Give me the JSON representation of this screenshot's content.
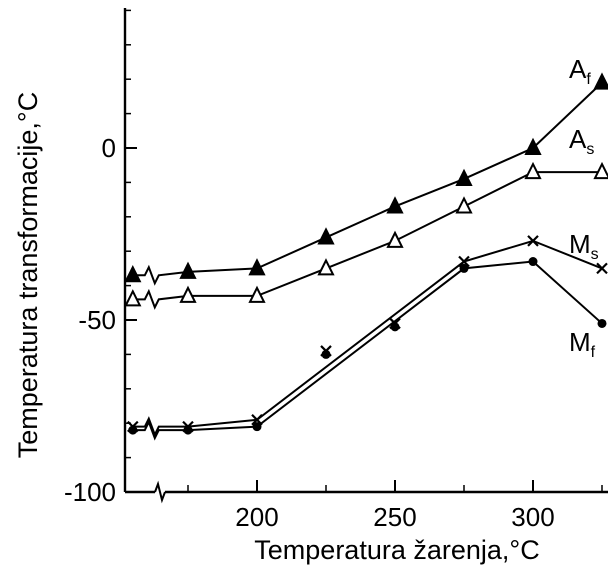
{
  "chart_data": {
    "type": "line",
    "title": "",
    "xlabel": "Temperatura žarenja,°C",
    "ylabel": "Temperatura transformacije,°C",
    "xlim": [
      150,
      325
    ],
    "ylim": [
      -100,
      45
    ],
    "x_ticks": [
      "200",
      "250",
      "300"
    ],
    "y_ticks": [
      "0",
      "-50",
      "-100"
    ],
    "x_tick_values": [
      200,
      250,
      300
    ],
    "y_tick_values": [
      0,
      -50,
      -100
    ],
    "axis_break": "x-axis broken between first value and 200",
    "grid": false,
    "series": [
      {
        "name": "Af",
        "label_main": "A",
        "label_sub": "f",
        "marker": "filled-triangle",
        "points": [
          {
            "x": 155,
            "y": -37
          },
          {
            "x": 175,
            "y": -36
          },
          {
            "x": 200,
            "y": -35
          },
          {
            "x": 225,
            "y": -26
          },
          {
            "x": 250,
            "y": -17
          },
          {
            "x": 275,
            "y": -9
          },
          {
            "x": 300,
            "y": 0
          },
          {
            "x": 325,
            "y": 19
          }
        ]
      },
      {
        "name": "As",
        "label_main": "A",
        "label_sub": "s",
        "marker": "open-triangle",
        "points": [
          {
            "x": 155,
            "y": -44
          },
          {
            "x": 175,
            "y": -43
          },
          {
            "x": 200,
            "y": -43
          },
          {
            "x": 225,
            "y": -35
          },
          {
            "x": 250,
            "y": -27
          },
          {
            "x": 275,
            "y": -17
          },
          {
            "x": 300,
            "y": -7
          },
          {
            "x": 325,
            "y": -7
          }
        ]
      },
      {
        "name": "Ms",
        "label_main": "M",
        "label_sub": "s",
        "marker": "cross",
        "points": [
          {
            "x": 155,
            "y": -81
          },
          {
            "x": 175,
            "y": -81
          },
          {
            "x": 200,
            "y": -79
          },
          {
            "x": 275,
            "y": -33
          },
          {
            "x": 300,
            "y": -27
          },
          {
            "x": 325,
            "y": -35
          }
        ]
      },
      {
        "name": "Mf",
        "label_main": "M",
        "label_sub": "f",
        "marker": "filled-circle",
        "points": [
          {
            "x": 155,
            "y": -82
          },
          {
            "x": 175,
            "y": -82
          },
          {
            "x": 200,
            "y": -81
          },
          {
            "x": 275,
            "y": -35
          },
          {
            "x": 300,
            "y": -33
          },
          {
            "x": 325,
            "y": -51
          }
        ]
      }
    ],
    "scatter_points": [
      {
        "x": 225,
        "y": -59,
        "marker": "cross"
      },
      {
        "x": 225,
        "y": -60,
        "marker": "filled-circle"
      },
      {
        "x": 250,
        "y": -51,
        "marker": "cross"
      },
      {
        "x": 250,
        "y": -52,
        "marker": "filled-circle"
      }
    ]
  }
}
